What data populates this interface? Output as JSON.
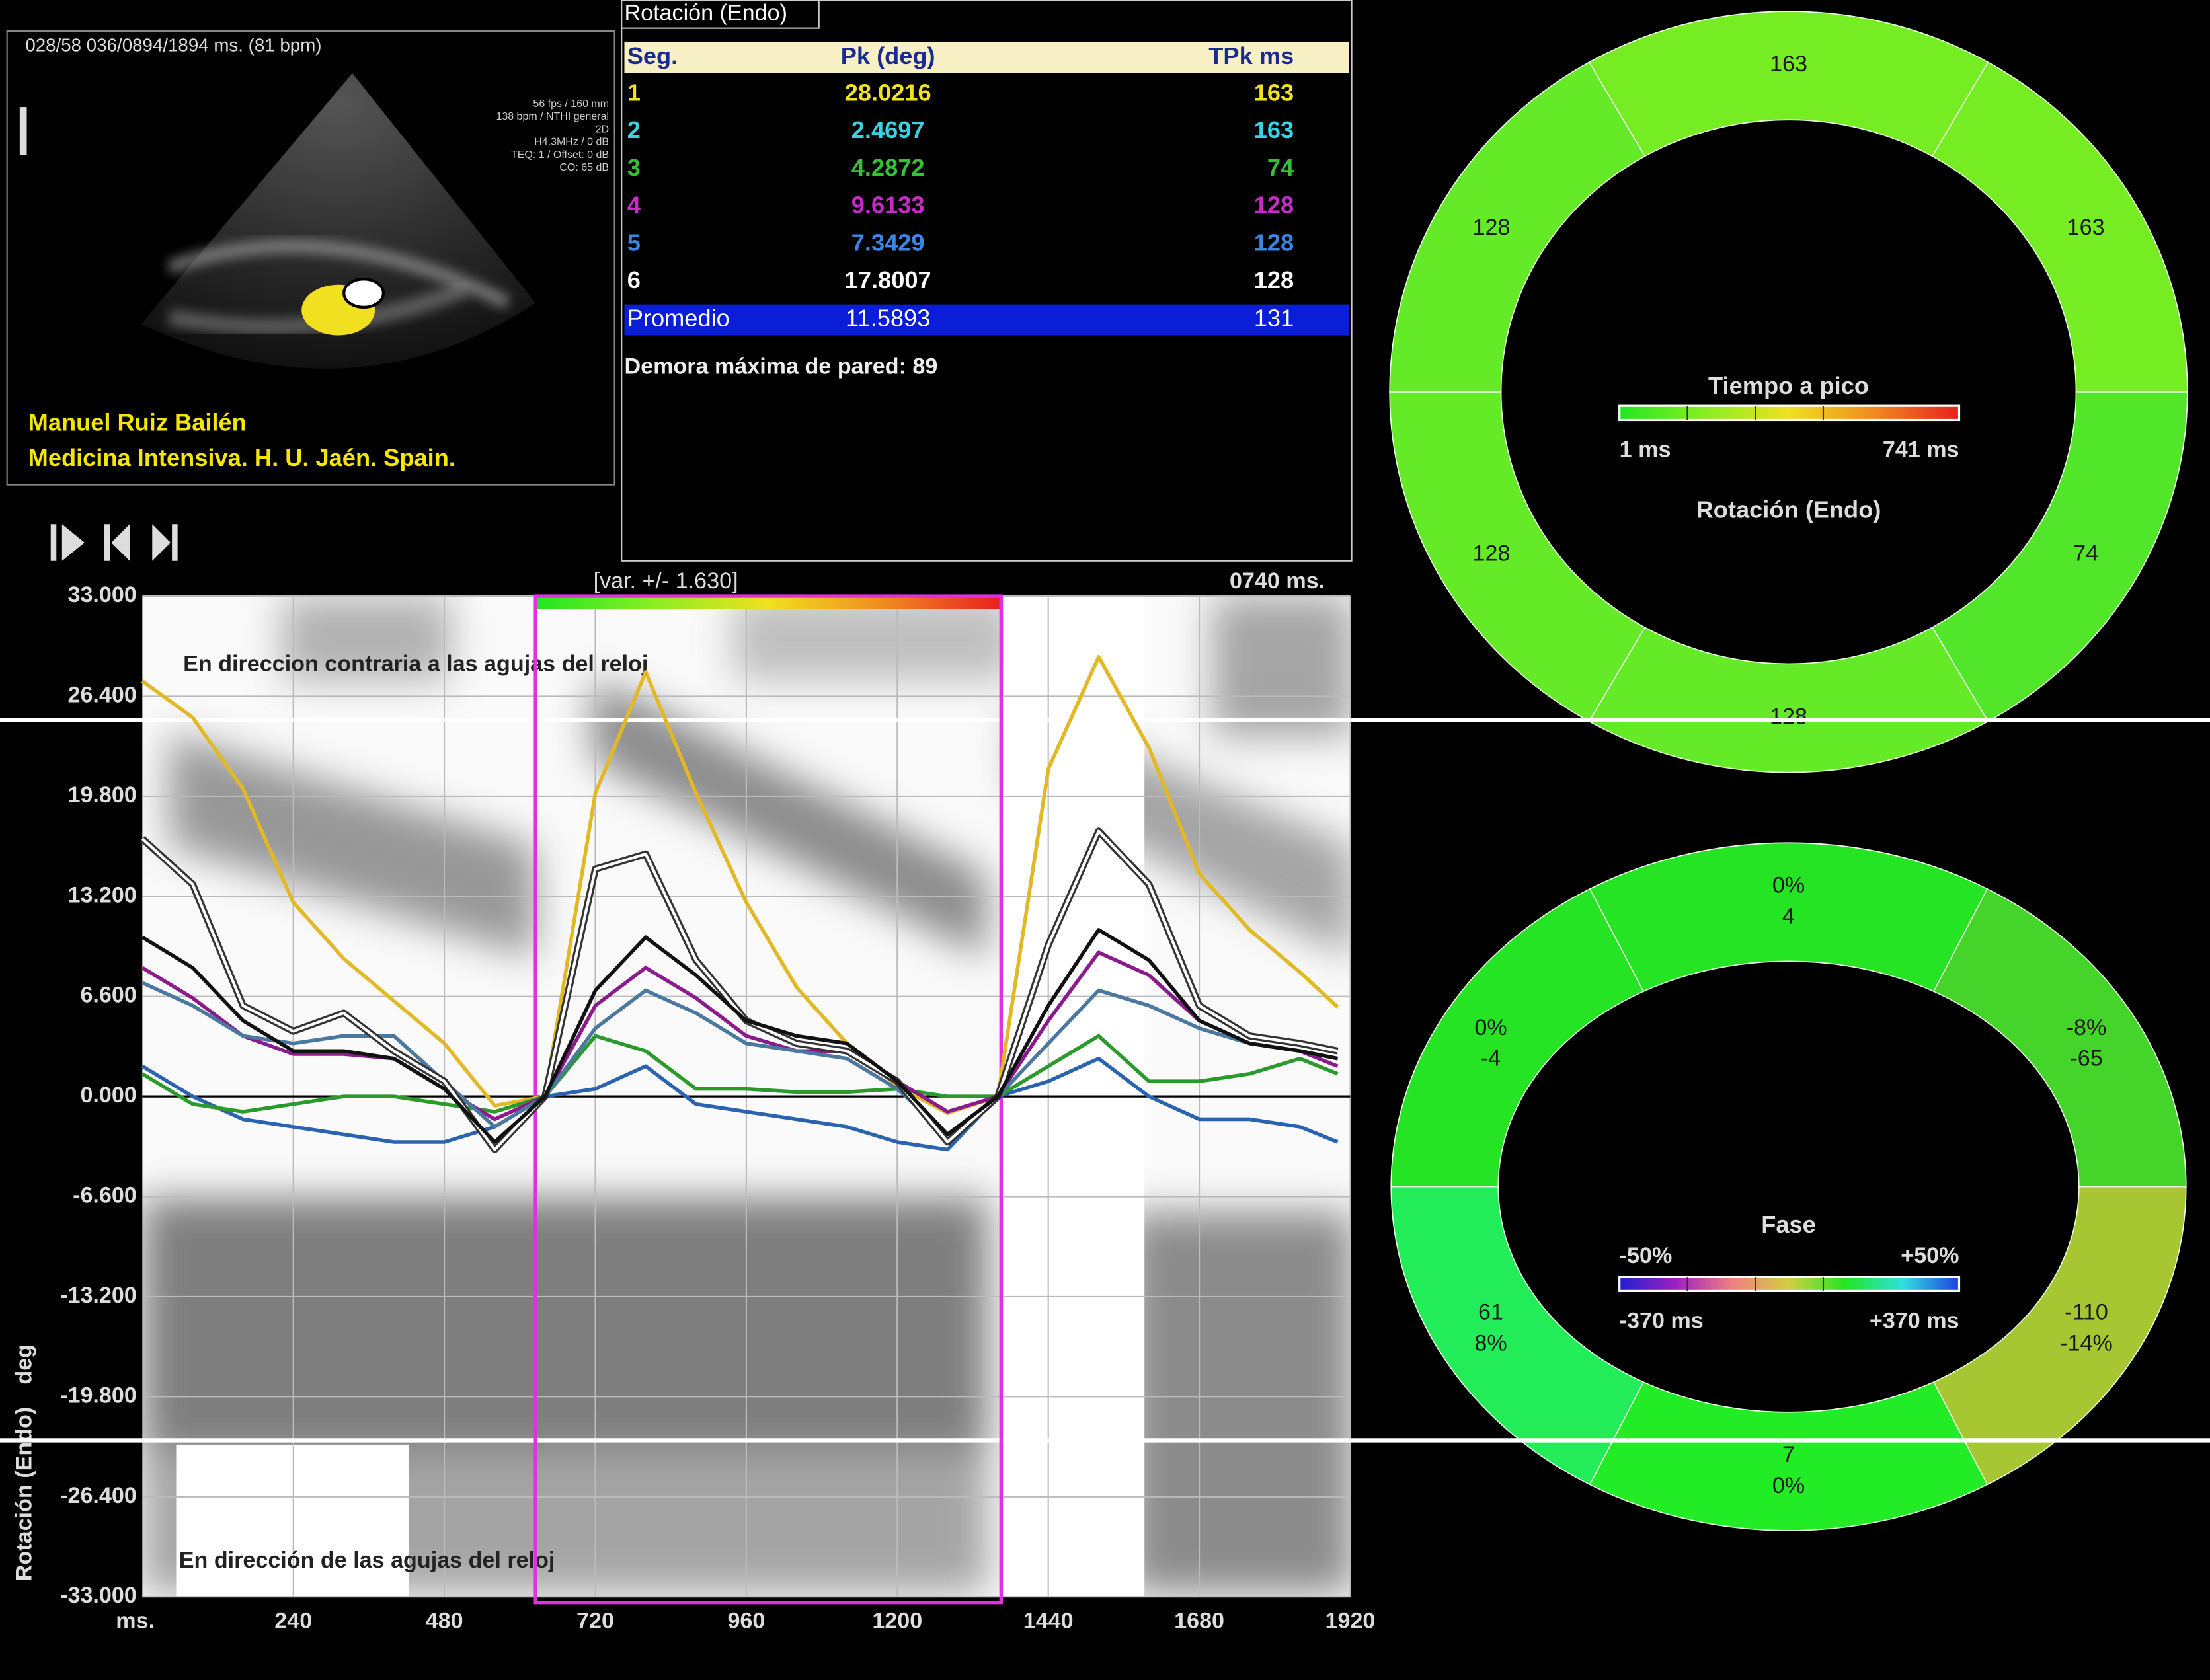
{
  "echo": {
    "header": "028/58  036/0894/1894 ms.  (81 bpm)",
    "params": [
      "56 fps / 160 mm",
      "138 bpm / NTHI general",
      "2D",
      "H4.3MHz / 0 dB",
      "TEQ: 1 / Offset: 0 dB",
      "CO: 65 dB"
    ],
    "author": "Manuel Ruiz Bailén",
    "affiliation": "Medicina Intensiva. H. U. Jaén. Spain."
  },
  "table": {
    "title": "Rotación  (Endo)",
    "columns": [
      "Seg.",
      "Pk (deg)",
      "TPk ms"
    ],
    "rows": [
      {
        "cells": [
          "1",
          "28.0216",
          "163"
        ],
        "color": "#f2e21a"
      },
      {
        "cells": [
          "2",
          "2.4697",
          "163"
        ],
        "color": "#38d2e2"
      },
      {
        "cells": [
          "3",
          "4.2872",
          "74"
        ],
        "color": "#34c234"
      },
      {
        "cells": [
          "4",
          "9.6133",
          "128"
        ],
        "color": "#c82cc8"
      },
      {
        "cells": [
          "5",
          "7.3429",
          "128"
        ],
        "color": "#3a86e2"
      },
      {
        "cells": [
          "6",
          "17.8007",
          "128"
        ],
        "color": "#ffffff"
      }
    ],
    "average": {
      "cells": [
        "Promedio",
        "11.5893",
        "131"
      ],
      "color": "#ffffff",
      "background": "#0a1ed8"
    },
    "footer": "Demora máxima de pared: 89"
  },
  "chart_data": {
    "type": "line",
    "ylabel": "Rotación (Endo)",
    "yunit": "deg",
    "xlabel": "ms.",
    "window_label": "[var. +/- 1.630]",
    "time_label": "0740 ms.",
    "upper_note": "En direccion contraria a las agujas del reloj",
    "lower_note": "En dirección  de las agujas del reloj",
    "x_window": [
      625,
      1365
    ],
    "window_color": "#e030e0",
    "xlim": [
      0,
      1920
    ],
    "ylim": [
      -33,
      33
    ],
    "xticks": [
      240,
      480,
      720,
      960,
      1200,
      1440,
      1680,
      1920
    ],
    "yticks": [
      {
        "value": 33,
        "label": "33.000"
      },
      {
        "value": 26.4,
        "label": "26.400"
      },
      {
        "value": 19.8,
        "label": "19.800"
      },
      {
        "value": 13.2,
        "label": "13.200"
      },
      {
        "value": 6.6,
        "label": "6.600"
      },
      {
        "value": 0,
        "label": "0.000"
      },
      {
        "value": -6.6,
        "label": "-6.600"
      },
      {
        "value": -13.2,
        "label": "-13.200"
      },
      {
        "value": -19.8,
        "label": "-19.800"
      },
      {
        "value": -26.4,
        "label": "-26.400"
      },
      {
        "value": -33,
        "label": "-33.000"
      }
    ],
    "grid": true,
    "x": [
      0,
      80,
      160,
      240,
      320,
      400,
      480,
      560,
      640,
      720,
      800,
      880,
      960,
      1040,
      1120,
      1200,
      1280,
      1360,
      1440,
      1520,
      1600,
      1680,
      1760,
      1840,
      1900
    ],
    "series": [
      {
        "color": "#e2b824",
        "values": [
          27.4,
          25,
          20.3,
          12.8,
          9.1,
          6.3,
          3.5,
          -0.6,
          0,
          20,
          28,
          20,
          12.8,
          7.2,
          3.5,
          0.7,
          -1.1,
          0,
          21.6,
          29,
          23,
          14.7,
          11,
          8.2,
          5.9
        ]
      },
      {
        "color": "#2a64b0",
        "values": [
          2,
          0,
          -1.5,
          -2,
          -2.5,
          -3,
          -3,
          -2,
          0,
          0.5,
          2,
          -0.5,
          -1,
          -1.5,
          -2,
          -3,
          -3.5,
          0,
          1,
          2.5,
          0,
          -1.5,
          -1.5,
          -2,
          -3
        ]
      },
      {
        "color": "#2a9a2a",
        "values": [
          1.5,
          -0.5,
          -1,
          -0.5,
          0,
          0,
          -0.5,
          -1,
          0,
          4,
          3,
          0.5,
          0.5,
          0.3,
          0.3,
          0.5,
          0,
          0,
          2,
          4,
          1,
          1,
          1.5,
          2.5,
          1.5
        ]
      },
      {
        "color": "#8c1a8c",
        "values": [
          8.5,
          6.5,
          4,
          2.8,
          2.8,
          2.5,
          0.5,
          -1.5,
          0,
          6,
          8.5,
          6.5,
          4,
          3,
          3,
          1,
          -1,
          0,
          5,
          9.5,
          8,
          5,
          3.5,
          3,
          2
        ]
      },
      {
        "color": "#4a78a0",
        "values": [
          7.5,
          6,
          4,
          3.5,
          4,
          4,
          1,
          -2,
          0,
          4.5,
          7,
          5.5,
          3.5,
          3,
          2.5,
          0.5,
          -2.5,
          0,
          3.5,
          7,
          6,
          4.5,
          3.5,
          3,
          2.5
        ]
      },
      {
        "color": "#ffffff",
        "outline": "#333333",
        "values": [
          17,
          14,
          6,
          4.3,
          5.5,
          3,
          1,
          -3.5,
          0,
          15,
          16,
          9,
          5,
          3.5,
          3,
          1,
          -3,
          0,
          10,
          17.5,
          14,
          6,
          4,
          3.5,
          3
        ]
      },
      {
        "color": "#111111",
        "values": [
          10.5,
          8.5,
          5,
          3,
          3,
          2.5,
          0.5,
          -3,
          0,
          7,
          10.5,
          8,
          5,
          4,
          3.5,
          1,
          -2.5,
          0,
          6,
          11,
          9,
          5,
          3.5,
          3,
          2.5
        ]
      }
    ]
  },
  "bullseye": [
    {
      "title": "Tiempo a pico",
      "scale_min": "1 ms",
      "scale_max": "741 ms",
      "subtitle": "Rotación (Endo)",
      "gradient": [
        "#22e622",
        "#88ee22",
        "#f0e020",
        "#f08a20",
        "#e82020"
      ],
      "segments": [
        {
          "labels": [
            "163"
          ],
          "color": "#76ec22"
        },
        {
          "labels": [
            "163"
          ],
          "color": "#76ec22"
        },
        {
          "labels": [
            "74"
          ],
          "color": "#52e62a"
        },
        {
          "labels": [
            "128"
          ],
          "color": "#64ea26"
        },
        {
          "labels": [
            "128"
          ],
          "color": "#64ea26"
        },
        {
          "labels": [
            "128"
          ],
          "color": "#64ea26"
        }
      ]
    },
    {
      "title": "Fase",
      "scale_min": "-50%",
      "scale_max": "+50%",
      "time_min": "-370 ms",
      "time_max": "+370 ms",
      "gradient": [
        "#2020d0",
        "#a020c0",
        "#f08080",
        "#d0d040",
        "#22e622",
        "#30e0e0",
        "#2040e0"
      ],
      "segments": [
        {
          "labels": [
            "0%",
            "4"
          ],
          "color": "#24e424"
        },
        {
          "labels": [
            "-8%",
            "-65"
          ],
          "color": "#44d42a"
        },
        {
          "labels": [
            "-110",
            "-14%"
          ],
          "color": "#a6c632"
        },
        {
          "labels": [
            "7",
            "0%"
          ],
          "color": "#22ec26"
        },
        {
          "labels": [
            "61",
            "8%"
          ],
          "color": "#22ec58"
        },
        {
          "labels": [
            "0%",
            "-4"
          ],
          "color": "#24e424"
        }
      ]
    }
  ]
}
